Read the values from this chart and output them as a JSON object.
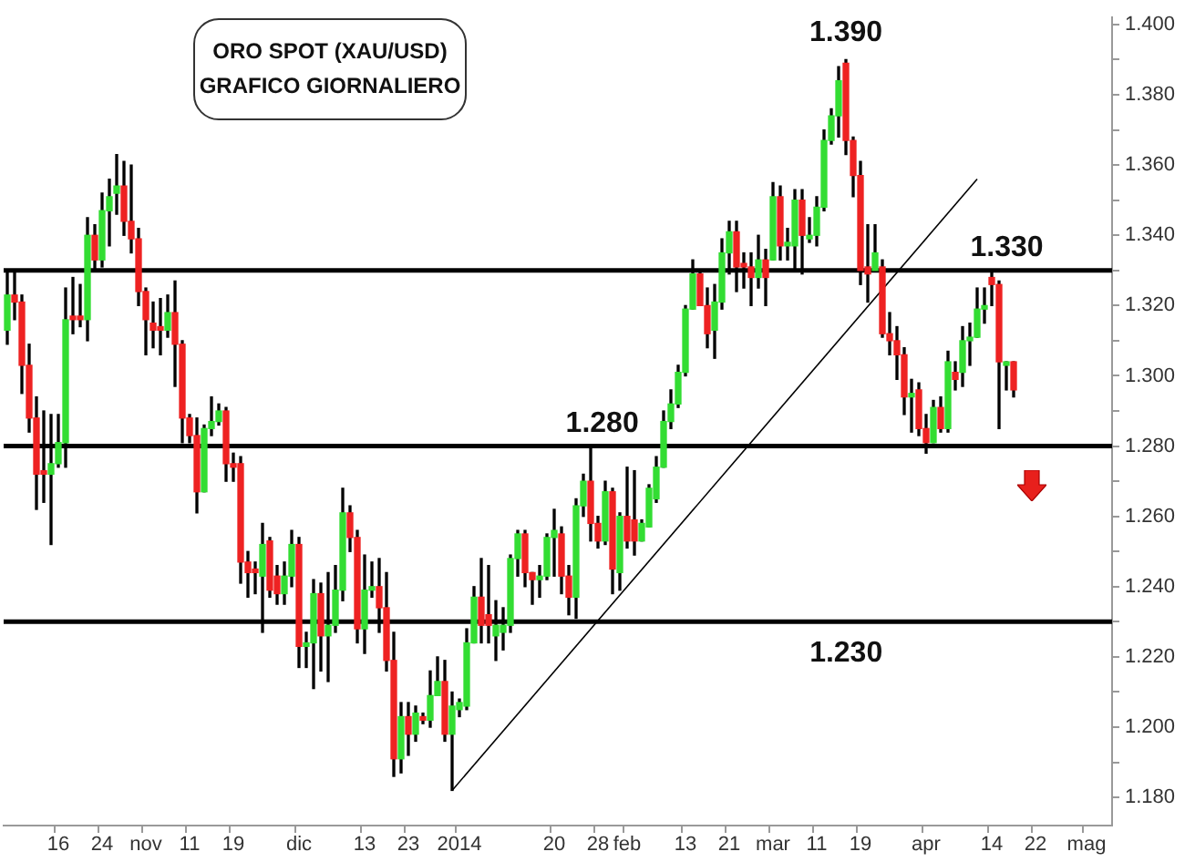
{
  "chart_data": {
    "type": "candlestick",
    "title": "ORO SPOT (XAU/USD)",
    "subtitle": "GRAFICO GIORNALIERO",
    "categories": [
      null,
      null,
      null,
      null,
      null,
      null,
      null,
      "16",
      null,
      null,
      null,
      null,
      null,
      "24",
      null,
      null,
      null,
      null,
      null,
      "nov",
      null,
      null,
      null,
      null,
      null,
      "11",
      null,
      null,
      null,
      null,
      null,
      "19",
      null,
      null,
      null,
      null,
      null,
      null,
      null,
      null,
      "dic",
      null,
      null,
      null,
      null,
      null,
      null,
      null,
      null,
      "13",
      null,
      null,
      null,
      null,
      null,
      "23",
      null,
      null,
      null,
      null,
      null,
      null,
      "2014",
      null,
      null,
      null,
      null,
      null,
      null,
      null,
      null,
      null,
      null,
      null,
      null,
      "20",
      null,
      null,
      null,
      null,
      null,
      "28",
      null,
      null,
      null,
      "feb",
      null,
      null,
      null,
      null,
      null,
      null,
      null,
      "13",
      null,
      null,
      null,
      null,
      null,
      "21",
      null,
      null,
      null,
      null,
      null,
      "mar",
      null,
      null,
      null,
      null,
      null,
      "11",
      null,
      null,
      null,
      null,
      null,
      "19",
      null,
      null,
      null,
      null,
      null,
      null,
      null,
      null,
      "apr",
      null,
      null,
      null,
      null,
      null,
      null,
      null,
      null,
      "14",
      null,
      null,
      null,
      null,
      null,
      "22",
      null,
      null,
      null,
      null,
      null,
      null,
      "mag",
      null,
      null,
      null
    ],
    "series": [
      {
        "type": "line",
        "color": "#000000",
        "values": [
          null,
          null,
          null,
          null,
          null,
          null,
          null,
          null,
          null,
          null,
          null,
          null,
          null,
          null,
          null,
          null,
          null,
          null,
          null,
          null,
          null,
          null,
          null,
          null,
          null,
          null,
          null,
          null,
          null,
          null,
          null,
          null,
          null,
          null,
          null,
          null,
          null,
          null,
          null,
          null,
          null,
          null,
          null,
          null,
          null,
          null,
          null,
          null,
          null,
          null,
          null,
          null,
          null,
          null,
          null,
          null,
          null,
          null,
          null,
          null,
          null,
          1182,
          null,
          null,
          null,
          null,
          null,
          null,
          null,
          null,
          null,
          null,
          null,
          null,
          null,
          null,
          null,
          null,
          null,
          null,
          null,
          null,
          null,
          null,
          null,
          null,
          null,
          null,
          null,
          null,
          null,
          null,
          null,
          null,
          null,
          null,
          null,
          null,
          null,
          null,
          null,
          null,
          null,
          null,
          null,
          null,
          null,
          null,
          null,
          null,
          null,
          null,
          null,
          null,
          null,
          null,
          null,
          null,
          null,
          null,
          null,
          null,
          null,
          null,
          null,
          null,
          null,
          null,
          null,
          null,
          null,
          null,
          null,
          1356,
          null,
          null,
          null,
          null,
          null,
          null,
          null,
          null,
          null,
          null,
          null,
          null,
          null,
          null,
          null,
          null,
          null,
          null
        ]
      },
      {
        "type": "candlestick",
        "color": "#000000",
        "ohlc": [
          [
            1313,
            1330,
            1309,
            1323
          ],
          [
            1323,
            1330,
            1316,
            1321
          ],
          [
            1321,
            1323,
            1295,
            1303
          ],
          [
            1303,
            1309,
            1284,
            1288
          ],
          [
            1288,
            1294,
            1262,
            1272
          ],
          [
            1273,
            1290,
            1264,
            1272
          ],
          [
            1272,
            1289,
            1252,
            1275
          ],
          [
            1275,
            1289,
            1274,
            1281
          ],
          [
            1281,
            1325,
            1274,
            1316
          ],
          [
            1317,
            1328,
            1312,
            1316
          ],
          [
            1317,
            1326,
            1314,
            1316
          ],
          [
            1316,
            1345,
            1310,
            1340
          ],
          [
            1340,
            1343,
            1330,
            1333
          ],
          [
            1333,
            1352,
            1331,
            1347
          ],
          [
            1347,
            1356,
            1337,
            1351
          ],
          [
            1352,
            1363,
            1346,
            1354
          ],
          [
            1354,
            1361,
            1340,
            1344
          ],
          [
            1344,
            1360,
            1335,
            1339
          ],
          [
            1339,
            1342,
            1320,
            1324
          ],
          [
            1324,
            1325,
            1306,
            1316
          ],
          [
            1315,
            1321,
            1308,
            1313
          ],
          [
            1314,
            1322,
            1306,
            1313
          ],
          [
            1313,
            1323,
            1311,
            1318
          ],
          [
            1318,
            1327,
            1297,
            1309
          ],
          [
            1309,
            1310,
            1281,
            1288
          ],
          [
            1288,
            1289,
            1281,
            1283
          ],
          [
            1283,
            1288,
            1261,
            1267
          ],
          [
            1267,
            1286,
            1267,
            1285
          ],
          [
            1285,
            1294,
            1283,
            1287
          ],
          [
            1287,
            1292,
            1286,
            1290
          ],
          [
            1290,
            1291,
            1270,
            1275
          ],
          [
            1275,
            1278,
            1270,
            1274
          ],
          [
            1275,
            1277,
            1241,
            1247
          ],
          [
            1247,
            1250,
            1237,
            1244
          ],
          [
            1245,
            1247,
            1238,
            1244
          ],
          [
            1243,
            1258,
            1227,
            1252
          ],
          [
            1253,
            1254,
            1237,
            1239
          ],
          [
            1243,
            1246,
            1235,
            1238
          ],
          [
            1238,
            1247,
            1235,
            1243
          ],
          [
            1243,
            1256,
            1240,
            1252
          ],
          [
            1252,
            1254,
            1217,
            1223
          ],
          [
            1223,
            1227,
            1217,
            1224
          ],
          [
            1224,
            1242,
            1211,
            1238
          ],
          [
            1238,
            1241,
            1216,
            1226
          ],
          [
            1226,
            1244,
            1213,
            1229
          ],
          [
            1229,
            1246,
            1227,
            1239
          ],
          [
            1239,
            1268,
            1236,
            1261
          ],
          [
            1261,
            1263,
            1250,
            1254
          ],
          [
            1254,
            1256,
            1224,
            1228
          ],
          [
            1228,
            1249,
            1221,
            1239
          ],
          [
            1239,
            1247,
            1237,
            1240
          ],
          [
            1240,
            1248,
            1227,
            1234
          ],
          [
            1234,
            1244,
            1216,
            1219
          ],
          [
            1219,
            1227,
            1186,
            1191
          ],
          [
            1191,
            1207,
            1187,
            1203
          ],
          [
            1203,
            1207,
            1192,
            1198
          ],
          [
            1198,
            1206,
            1196,
            1204
          ],
          [
            1203,
            1204,
            1201,
            1202
          ],
          [
            1202,
            1216,
            1200,
            1209
          ],
          [
            1209,
            1220,
            1209,
            1213
          ],
          [
            1213,
            1219,
            1196,
            1198
          ],
          [
            1198,
            1210,
            1182,
            1206
          ],
          [
            1205,
            1208,
            1203,
            1207
          ],
          [
            1206,
            1228,
            1205,
            1224
          ],
          [
            1224,
            1240,
            1224,
            1237
          ],
          [
            1237,
            1248,
            1224,
            1229
          ],
          [
            1232,
            1246,
            1224,
            1229
          ],
          [
            1226,
            1236,
            1219,
            1229
          ],
          [
            1227,
            1234,
            1222,
            1229
          ],
          [
            1229,
            1249,
            1227,
            1248
          ],
          [
            1248,
            1256,
            1243,
            1255
          ],
          [
            1255,
            1256,
            1240,
            1244
          ],
          [
            1244,
            1244,
            1235,
            1242
          ],
          [
            1242,
            1246,
            1237,
            1243
          ],
          [
            1243,
            1255,
            1242,
            1254
          ],
          [
            1254,
            1262,
            1243,
            1256
          ],
          [
            1255,
            1257,
            1238,
            1243
          ],
          [
            1243,
            1246,
            1232,
            1237
          ],
          [
            1237,
            1265,
            1231,
            1263
          ],
          [
            1263,
            1272,
            1260,
            1270
          ],
          [
            1270,
            1280,
            1253,
            1258
          ],
          [
            1258,
            1260,
            1251,
            1253
          ],
          [
            1253,
            1270,
            1252,
            1267
          ],
          [
            1267,
            1268,
            1238,
            1245
          ],
          [
            1244,
            1261,
            1239,
            1260
          ],
          [
            1260,
            1274,
            1251,
            1253
          ],
          [
            1259,
            1273,
            1249,
            1253
          ],
          [
            1253,
            1259,
            1253,
            1258
          ],
          [
            1257,
            1269,
            1257,
            1268
          ],
          [
            1265,
            1277,
            1264,
            1274
          ],
          [
            1274,
            1290,
            1274,
            1287
          ],
          [
            1287,
            1296,
            1285,
            1292
          ],
          [
            1292,
            1303,
            1291,
            1301
          ],
          [
            1301,
            1320,
            1300,
            1319
          ],
          [
            1319,
            1333,
            1319,
            1329
          ],
          [
            1329,
            1330,
            1320,
            1320
          ],
          [
            1320,
            1325,
            1308,
            1312
          ],
          [
            1313,
            1326,
            1305,
            1321
          ],
          [
            1321,
            1339,
            1319,
            1335
          ],
          [
            1335,
            1344,
            1329,
            1341
          ],
          [
            1341,
            1344,
            1324,
            1331
          ],
          [
            1332,
            1335,
            1325,
            1331
          ],
          [
            1331,
            1335,
            1320,
            1328
          ],
          [
            1328,
            1340,
            1325,
            1333
          ],
          [
            1333,
            1336,
            1320,
            1328
          ],
          [
            1333,
            1355,
            1333,
            1351
          ],
          [
            1351,
            1354,
            1333,
            1337
          ],
          [
            1337,
            1342,
            1333,
            1338
          ],
          [
            1337,
            1353,
            1330,
            1350
          ],
          [
            1350,
            1353,
            1329,
            1340
          ],
          [
            1339,
            1345,
            1338,
            1340
          ],
          [
            1340,
            1351,
            1337,
            1348
          ],
          [
            1348,
            1370,
            1347,
            1367
          ],
          [
            1367,
            1376,
            1366,
            1374
          ],
          [
            1374,
            1388,
            1368,
            1384
          ],
          [
            1389,
            1390,
            1363,
            1367
          ],
          [
            1367,
            1368,
            1351,
            1357
          ],
          [
            1357,
            1361,
            1326,
            1330
          ],
          [
            1331,
            1343,
            1321,
            1329
          ],
          [
            1330,
            1343,
            1330,
            1335
          ],
          [
            1331,
            1333,
            1311,
            1312
          ],
          [
            1312,
            1318,
            1306,
            1310
          ],
          [
            1310,
            1314,
            1299,
            1306
          ],
          [
            1306,
            1308,
            1289,
            1294
          ],
          [
            1294,
            1299,
            1284,
            1295
          ],
          [
            1296,
            1298,
            1283,
            1285
          ],
          [
            1285,
            1289,
            1278,
            1281
          ],
          [
            1281,
            1293,
            1281,
            1291
          ],
          [
            1291,
            1294,
            1284,
            1285
          ],
          [
            1285,
            1307,
            1284,
            1304
          ],
          [
            1301,
            1304,
            1296,
            1299
          ],
          [
            1301,
            1314,
            1297,
            1310
          ],
          [
            1310,
            1315,
            1303,
            1311
          ],
          [
            1311,
            1325,
            1311,
            1319
          ],
          [
            1319,
            1325,
            1315,
            1320
          ],
          [
            1328,
            1330,
            1320,
            1326
          ],
          [
            1326,
            1327,
            1285,
            1304
          ],
          [
            1303,
            1304,
            1296,
            1304
          ],
          [
            1304,
            1304,
            1294,
            1296
          ],
          null,
          null,
          null,
          null,
          null,
          null,
          null,
          null,
          null,
          null,
          null,
          null,
          null
        ],
        "colors": [
          "#33dd33",
          "#ee2222",
          "#ee2222",
          "#ee2222",
          "#ee2222",
          "#ee2222",
          "#33dd33",
          "#33dd33",
          "#33dd33",
          "#ee2222",
          "#ee2222",
          "#33dd33",
          "#ee2222",
          "#33dd33",
          "#33dd33",
          "#33dd33",
          "#ee2222",
          "#ee2222",
          "#ee2222",
          "#ee2222",
          "#ee2222",
          "#ee2222",
          "#33dd33",
          "#ee2222",
          "#ee2222",
          "#ee2222",
          "#ee2222",
          "#33dd33",
          "#33dd33",
          "#33dd33",
          "#ee2222",
          "#ee2222",
          "#ee2222",
          "#ee2222",
          "#ee2222",
          "#33dd33",
          "#ee2222",
          "#ee2222",
          "#33dd33",
          "#33dd33",
          "#ee2222",
          "#33dd33",
          "#33dd33",
          "#ee2222",
          "#33dd33",
          "#33dd33",
          "#33dd33",
          "#ee2222",
          "#ee2222",
          "#33dd33",
          "#33dd33",
          "#ee2222",
          "#ee2222",
          "#ee2222",
          "#33dd33",
          "#ee2222",
          "#33dd33",
          "#ee2222",
          "#33dd33",
          "#33dd33",
          "#ee2222",
          "#33dd33",
          "#33dd33",
          "#33dd33",
          "#33dd33",
          "#ee2222",
          "#ee2222",
          "#33dd33",
          "#33dd33",
          "#33dd33",
          "#33dd33",
          "#ee2222",
          "#ee2222",
          "#33dd33",
          "#33dd33",
          "#33dd33",
          "#ee2222",
          "#ee2222",
          "#33dd33",
          "#33dd33",
          "#ee2222",
          "#ee2222",
          "#33dd33",
          "#ee2222",
          "#33dd33",
          "#ee2222",
          "#ee2222",
          "#33dd33",
          "#33dd33",
          "#33dd33",
          "#33dd33",
          "#33dd33",
          "#33dd33",
          "#33dd33",
          "#33dd33",
          "#ee2222",
          "#ee2222",
          "#33dd33",
          "#33dd33",
          "#33dd33",
          "#ee2222",
          "#ee2222",
          "#ee2222",
          "#33dd33",
          "#ee2222",
          "#33dd33",
          "#ee2222",
          "#33dd33",
          "#33dd33",
          "#ee2222",
          "#33dd33",
          "#33dd33",
          "#33dd33",
          "#33dd33",
          "#33dd33",
          "#ee2222",
          "#ee2222",
          "#ee2222",
          "#ee2222",
          "#33dd33",
          "#ee2222",
          "#ee2222",
          "#ee2222",
          "#ee2222",
          "#33dd33",
          "#ee2222",
          "#ee2222",
          "#33dd33",
          "#ee2222",
          "#33dd33",
          "#ee2222",
          "#33dd33",
          "#33dd33",
          "#33dd33",
          "#33dd33",
          "#ee2222",
          "#ee2222",
          "#33dd33",
          "#ee2222",
          null,
          null,
          null,
          null,
          null,
          null,
          null,
          null,
          null,
          null,
          null,
          null,
          null
        ]
      }
    ],
    "ylim": [
      1172,
      1402
    ],
    "yticks": [
      {
        "value": 1180,
        "label": "1.180"
      },
      {
        "value": 1190,
        "label": null
      },
      {
        "value": 1200,
        "label": "1.200"
      },
      {
        "value": 1210,
        "label": null
      },
      {
        "value": 1220,
        "label": "1.220"
      },
      {
        "value": 1230,
        "label": null
      },
      {
        "value": 1240,
        "label": "1.240"
      },
      {
        "value": 1250,
        "label": null
      },
      {
        "value": 1260,
        "label": "1.260"
      },
      {
        "value": 1270,
        "label": null
      },
      {
        "value": 1280,
        "label": "1.280"
      },
      {
        "value": 1290,
        "label": null
      },
      {
        "value": 1300,
        "label": "1.300"
      },
      {
        "value": 1310,
        "label": null
      },
      {
        "value": 1320,
        "label": "1.320"
      },
      {
        "value": 1330,
        "label": null
      },
      {
        "value": 1340,
        "label": "1.340"
      },
      {
        "value": 1350,
        "label": null
      },
      {
        "value": 1360,
        "label": "1.360"
      },
      {
        "value": 1370,
        "label": null
      },
      {
        "value": 1380,
        "label": "1.380"
      },
      {
        "value": 1390,
        "label": null
      },
      {
        "value": 1400,
        "label": "1.400"
      }
    ],
    "ref_lines": [
      {
        "axis": "y",
        "value": 1330,
        "label": "1.330",
        "color": "#000000"
      },
      {
        "axis": "y",
        "value": 1280,
        "label": "1.280",
        "color": "#000000"
      },
      {
        "axis": "y",
        "value": 1230,
        "label": "1.230",
        "color": "#000000"
      }
    ],
    "annotations": [
      {
        "text": "1.390",
        "y": 1390
      }
    ],
    "grid": false
  }
}
